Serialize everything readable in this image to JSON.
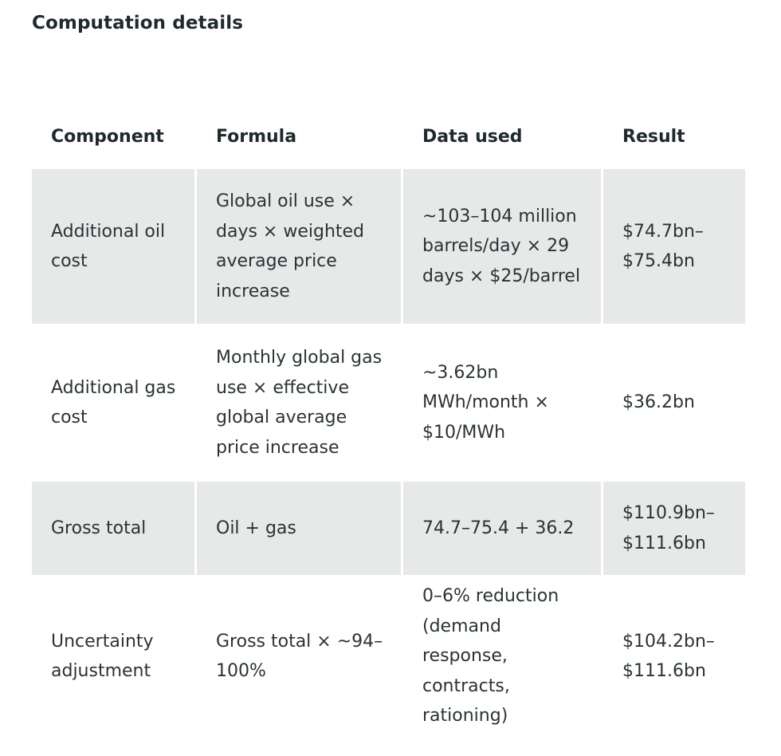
{
  "heading": "Computation details",
  "table": {
    "headers": [
      "Component",
      "Formula",
      "Data used",
      "Result"
    ],
    "rows": [
      {
        "component": "Additional oil cost",
        "formula": "Global oil use × days × weighted average price increase",
        "data_used": "~103–104 million barrels/day × 29 days × $25/barrel",
        "result": "$74.7bn–$75.4bn"
      },
      {
        "component": "Additional gas cost",
        "formula": "Monthly global gas use × effective global average price increase",
        "data_used": "~3.62bn MWh/month × $10/MWh",
        "result": "$36.2bn"
      },
      {
        "component": "Gross total",
        "formula": "Oil + gas",
        "data_used": "74.7–75.4 + 36.2",
        "result": "$110.9bn–$111.6bn"
      },
      {
        "component": "Uncertainty adjustment",
        "formula": "Gross total × ~94–100%",
        "data_used": "0–6% reduction (demand response, contracts, rationing)",
        "result": "$104.2bn–$111.6bn"
      }
    ]
  }
}
